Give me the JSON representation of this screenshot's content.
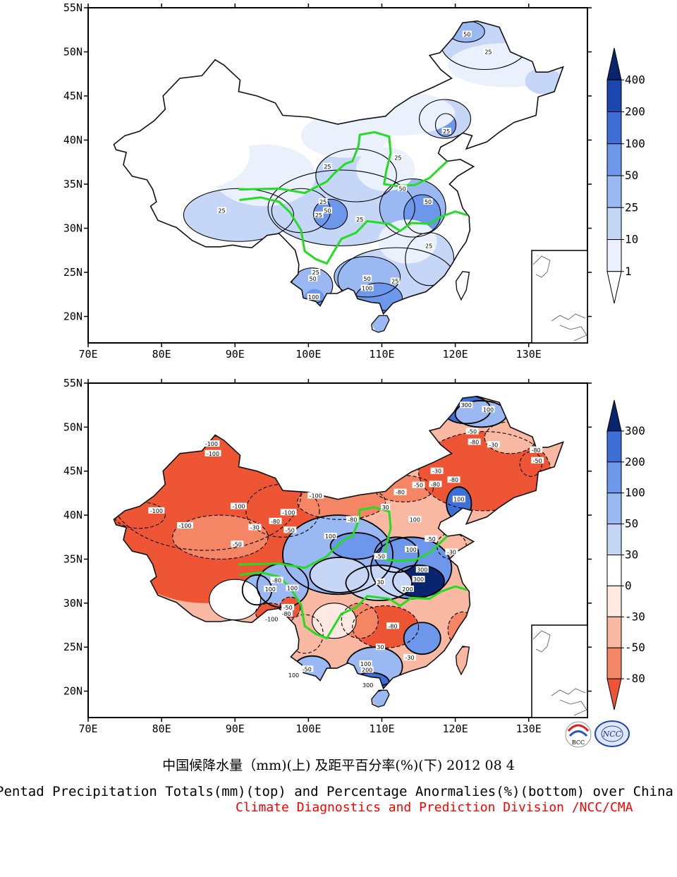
{
  "figure": {
    "title_cn": "中国候降水量（mm)(上) 及距平百分率(%)(下) 2012 08 4",
    "title_en": "Pentad Precipitation Totals(mm)(top) and Percentage Anormalies(%)(bottom) over China",
    "credit": "Climate Diagnostics and Prediction Division /NCC/CMA",
    "logos": [
      "BCC",
      "NCC"
    ]
  },
  "axes": {
    "lon_labels": [
      "70E",
      "80E",
      "90E",
      "100E",
      "110E",
      "120E",
      "130E"
    ],
    "lat_labels": [
      "55N",
      "50N",
      "45N",
      "40N",
      "35N",
      "30N",
      "25N",
      "20N"
    ]
  },
  "chart_data": [
    {
      "type": "heatmap",
      "panel": "top",
      "variable": "Pentad precipitation total (mm)",
      "xlim": [
        70,
        138
      ],
      "ylim": [
        17,
        55
      ],
      "colorbar": {
        "levels": [
          "400",
          "200",
          "100",
          "50",
          "25",
          "10",
          "1"
        ],
        "colors": [
          "#ffffff",
          "#eaf1fc",
          "#c6d6f7",
          "#9ab8f1",
          "#6c97ea",
          "#3e6ed8",
          "#1d47b0",
          "#0a2570"
        ]
      },
      "contour_labels": [
        {
          "text": "50",
          "lon": 121.6,
          "lat": 52
        },
        {
          "text": "25",
          "lon": 124.5,
          "lat": 50
        },
        {
          "text": "25",
          "lon": 118.8,
          "lat": 41
        },
        {
          "text": "25",
          "lon": 112.2,
          "lat": 38
        },
        {
          "text": "25",
          "lon": 102.6,
          "lat": 37
        },
        {
          "text": "50",
          "lon": 112.8,
          "lat": 34.5
        },
        {
          "text": "50",
          "lon": 116.3,
          "lat": 33
        },
        {
          "text": "25",
          "lon": 88.2,
          "lat": 32
        },
        {
          "text": "25",
          "lon": 102.0,
          "lat": 33
        },
        {
          "text": "50",
          "lon": 102.6,
          "lat": 32
        },
        {
          "text": "25",
          "lon": 101.4,
          "lat": 31.5
        },
        {
          "text": "25",
          "lon": 107.0,
          "lat": 31
        },
        {
          "text": "25",
          "lon": 116.4,
          "lat": 28
        },
        {
          "text": "25",
          "lon": 101.0,
          "lat": 25
        },
        {
          "text": "50",
          "lon": 100.6,
          "lat": 24.3
        },
        {
          "text": "100",
          "lon": 100.7,
          "lat": 22.2
        },
        {
          "text": "50",
          "lon": 108.0,
          "lat": 24.3
        },
        {
          "text": "25",
          "lon": 111.8,
          "lat": 24
        },
        {
          "text": "100",
          "lon": 108.0,
          "lat": 23.2
        }
      ]
    },
    {
      "type": "heatmap",
      "panel": "bottom",
      "variable": "Precipitation anomaly percentage (%)",
      "xlim": [
        70,
        138
      ],
      "ylim": [
        17,
        55
      ],
      "colorbar": {
        "levels": [
          "300",
          "200",
          "100",
          "50",
          "30",
          "0",
          "-30",
          "-50",
          "-80"
        ],
        "colors": [
          "#ee5535",
          "#f48565",
          "#f9b8a2",
          "#fde9e1",
          "#ffffff",
          "#c6d6f7",
          "#9ab8f1",
          "#6c97ea",
          "#3e6ed8",
          "#0a2570"
        ]
      },
      "contour_labels": [
        {
          "text": "300",
          "lon": 121.5,
          "lat": 52.5
        },
        {
          "text": "100",
          "lon": 124.5,
          "lat": 52
        },
        {
          "text": "-50",
          "lon": 122.3,
          "lat": 49.5
        },
        {
          "text": "-80",
          "lon": 122.6,
          "lat": 48.3
        },
        {
          "text": "-30",
          "lon": 125.2,
          "lat": 48
        },
        {
          "text": "-80",
          "lon": 131,
          "lat": 47.4
        },
        {
          "text": "-50",
          "lon": 131.2,
          "lat": 46.2
        },
        {
          "text": "-100",
          "lon": 86.8,
          "lat": 48.1
        },
        {
          "text": "-100",
          "lon": 87.0,
          "lat": 47
        },
        {
          "text": "-100",
          "lon": 79.3,
          "lat": 40.5
        },
        {
          "text": "-100",
          "lon": 83.2,
          "lat": 38.8
        },
        {
          "text": "-100",
          "lon": 90.5,
          "lat": 41
        },
        {
          "text": "-100",
          "lon": 97.3,
          "lat": 40.3
        },
        {
          "text": "-80",
          "lon": 95.5,
          "lat": 39.3
        },
        {
          "text": "-100",
          "lon": 101.0,
          "lat": 42.2
        },
        {
          "text": "-30",
          "lon": 92.7,
          "lat": 38.6
        },
        {
          "text": "-50",
          "lon": 97.5,
          "lat": 38.3
        },
        {
          "text": "-80",
          "lon": 106.0,
          "lat": 39.5
        },
        {
          "text": "-80",
          "lon": 112.5,
          "lat": 42.6
        },
        {
          "text": "-80",
          "lon": 117.3,
          "lat": 43.5
        },
        {
          "text": "-50",
          "lon": 115.0,
          "lat": 43.4
        },
        {
          "text": "-30",
          "lon": 117.5,
          "lat": 45
        },
        {
          "text": "-80",
          "lon": 119.8,
          "lat": 44
        },
        {
          "text": "100",
          "lon": 120.5,
          "lat": 41.8
        },
        {
          "text": "30",
          "lon": 110.5,
          "lat": 40.9
        },
        {
          "text": "100",
          "lon": 114.5,
          "lat": 39.5
        },
        {
          "text": "-50",
          "lon": 116.7,
          "lat": 37.3
        },
        {
          "text": "-30",
          "lon": 119.5,
          "lat": 35.8
        },
        {
          "text": "100",
          "lon": 103.0,
          "lat": 37.6
        },
        {
          "text": "100",
          "lon": 114.0,
          "lat": 36.1
        },
        {
          "text": "-50",
          "lon": 109.8,
          "lat": 35.3
        },
        {
          "text": "300",
          "lon": 115.5,
          "lat": 33.8
        },
        {
          "text": "300",
          "lon": 115.0,
          "lat": 32.7
        },
        {
          "text": "30",
          "lon": 109.8,
          "lat": 32.4
        },
        {
          "text": "200",
          "lon": 113.5,
          "lat": 31.6
        },
        {
          "text": "-50",
          "lon": 90.3,
          "lat": 36.7
        },
        {
          "text": "-80",
          "lon": 95.7,
          "lat": 32.6
        },
        {
          "text": "100",
          "lon": 94.8,
          "lat": 31.6
        },
        {
          "text": "100",
          "lon": 97.8,
          "lat": 31.7
        },
        {
          "text": "-50",
          "lon": 97.2,
          "lat": 29.5
        },
        {
          "text": "-80",
          "lon": 97.0,
          "lat": 28.8
        },
        {
          "text": "-100",
          "lon": 95.0,
          "lat": 28.2
        },
        {
          "text": "-80",
          "lon": 111.5,
          "lat": 27.4
        },
        {
          "text": "30",
          "lon": 109.8,
          "lat": 25
        },
        {
          "text": "-30",
          "lon": 113.8,
          "lat": 23.8
        },
        {
          "text": "100",
          "lon": 107.8,
          "lat": 23.1
        },
        {
          "text": "200",
          "lon": 108.0,
          "lat": 22.4
        },
        {
          "text": "300",
          "lon": 108.1,
          "lat": 20.7
        },
        {
          "text": "-50",
          "lon": 99.8,
          "lat": 22.5
        },
        {
          "text": "100",
          "lon": 98.0,
          "lat": 21.8
        }
      ]
    }
  ]
}
